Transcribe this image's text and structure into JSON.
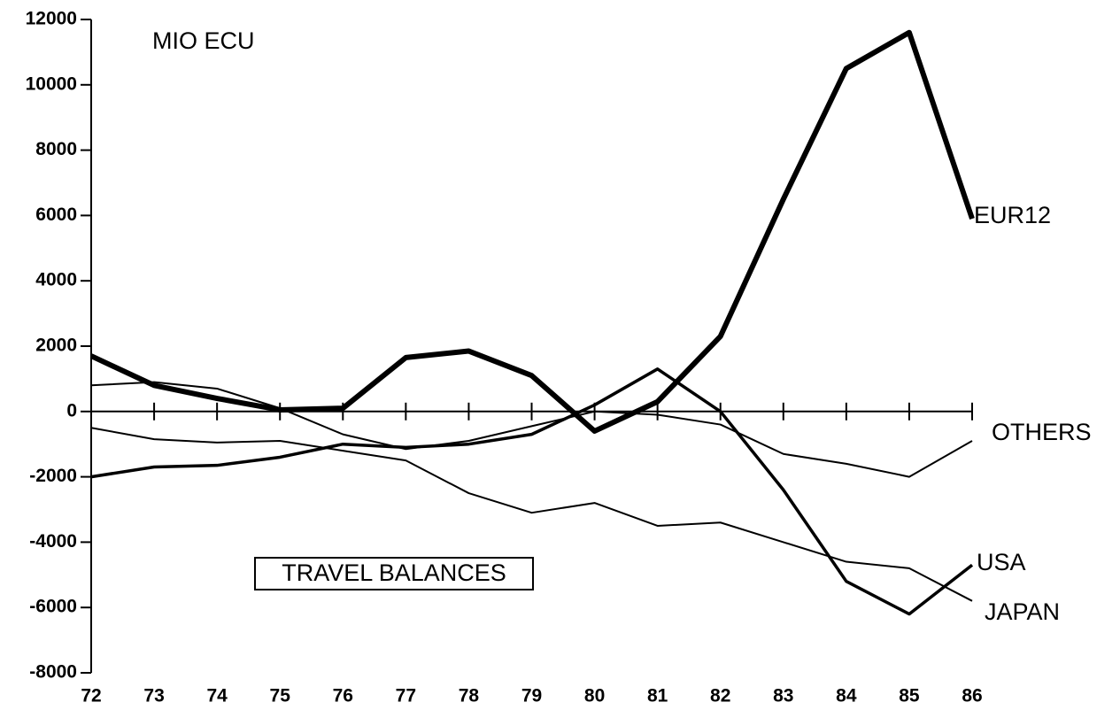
{
  "chart_data": {
    "type": "line",
    "annotations": [
      "MIO ECU",
      "TRAVEL BALANCES"
    ],
    "categories": [
      "72",
      "73",
      "74",
      "75",
      "76",
      "77",
      "78",
      "79",
      "80",
      "81",
      "82",
      "83",
      "84",
      "85",
      "86"
    ],
    "series": [
      {
        "name": "EUR12",
        "color": "#000000",
        "width": 6,
        "values": [
          1700,
          800,
          400,
          50,
          100,
          1650,
          1850,
          1100,
          -600,
          300,
          2300,
          6500,
          10500,
          11600,
          5900
        ]
      },
      {
        "name": "OTHERS",
        "color": "#000000",
        "width": 2,
        "values": [
          800,
          900,
          700,
          100,
          -700,
          -1150,
          -900,
          -450,
          0,
          -100,
          -400,
          -1300,
          -1600,
          -2000,
          -900
        ]
      },
      {
        "name": "USA",
        "color": "#000000",
        "width": 3.5,
        "values": [
          -2000,
          -1700,
          -1650,
          -1400,
          -1000,
          -1100,
          -1000,
          -700,
          200,
          1300,
          0,
          -2400,
          -5200,
          -6200,
          -4700
        ]
      },
      {
        "name": "JAPAN",
        "color": "#000000",
        "width": 2,
        "values": [
          -500,
          -850,
          -950,
          -900,
          -1200,
          -1500,
          -2500,
          -3100,
          -2800,
          -3500,
          -3400,
          -4000,
          -4600,
          -4800,
          -5800
        ]
      }
    ],
    "ylim": [
      -8000,
      12000
    ],
    "yticks": [
      -8000,
      -6000,
      -4000,
      -2000,
      0,
      2000,
      4000,
      6000,
      8000,
      10000,
      12000
    ]
  }
}
